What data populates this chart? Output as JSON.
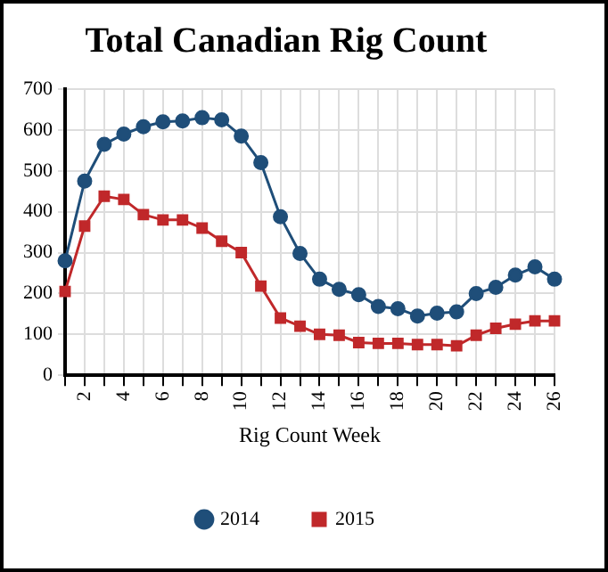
{
  "chart_data": {
    "type": "line",
    "title": "Total Canadian Rig Count",
    "xlabel": "Rig Count Week",
    "categories": [
      null,
      "2",
      null,
      "4",
      null,
      "6",
      null,
      "8",
      null,
      "10",
      null,
      "12",
      null,
      "14",
      null,
      "16",
      null,
      "18",
      null,
      "20",
      null,
      "22",
      null,
      "24",
      null,
      "26"
    ],
    "series": [
      {
        "name": "2014",
        "color": "#1f4e79",
        "marker": "circle",
        "values": [
          280,
          475,
          565,
          590,
          608,
          620,
          622,
          630,
          625,
          585,
          520,
          388,
          298,
          235,
          210,
          197,
          168,
          163,
          145,
          152,
          155,
          200,
          215,
          245,
          265,
          235
        ]
      },
      {
        "name": "2015",
        "color": "#c0282a",
        "marker": "square",
        "values": [
          205,
          365,
          438,
          430,
          393,
          380,
          380,
          360,
          328,
          300,
          218,
          140,
          120,
          100,
          98,
          80,
          78,
          78,
          75,
          75,
          72,
          98,
          115,
          125,
          133,
          133
        ]
      }
    ],
    "ylim": [
      0,
      700
    ],
    "yticks": [
      0,
      100,
      200,
      300,
      400,
      500,
      600,
      700
    ],
    "grid": true,
    "legend": "bottom",
    "line_style": "solid"
  }
}
